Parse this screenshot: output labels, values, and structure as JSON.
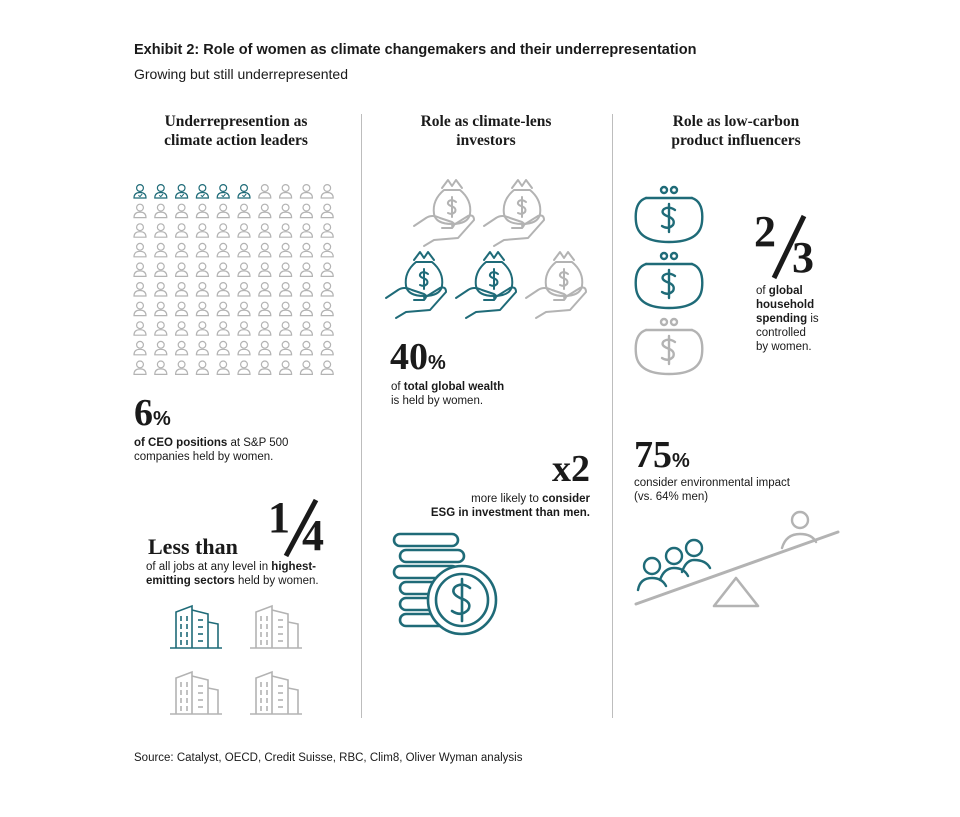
{
  "title": "Exhibit 2: Role of women as climate changemakers and their underrepresentation",
  "subtitle": "Growing but still underrepresented",
  "colors": {
    "teal": "#1f6b78",
    "grey": "#b3b3b3",
    "text": "#1a1a1a"
  },
  "columns": {
    "leaders": {
      "heading_line1": "Underrepresention as",
      "heading_line2": "climate action leaders",
      "icon_grid": {
        "icon": "person-icon",
        "rows": 10,
        "cols": 10,
        "highlighted": 6
      },
      "stat1": {
        "value": "6",
        "unit": "%",
        "text_bold": "of CEO positions",
        "text_rest": " at S&P 500",
        "text_line2": "companies held by women."
      },
      "stat2": {
        "prefix": "Less than",
        "fraction_num": "1",
        "fraction_den": "4",
        "line1_plain": "of all jobs at any level in ",
        "line1_bold": "highest-",
        "line2_bold": "emitting sectors",
        "line2_plain": " held by women."
      },
      "buildings": {
        "icon": "building-icon",
        "count": 4,
        "highlighted": 1
      }
    },
    "investors": {
      "heading_line1": "Role as climate-lens",
      "heading_line2": "investors",
      "money_bags": {
        "icon": "money-bag-hand-icon",
        "count": 5,
        "highlighted": 2
      },
      "stat1": {
        "value": "40",
        "unit": "%",
        "line1_plain": "of ",
        "line1_bold": "total global wealth",
        "line2": "is held by women."
      },
      "stat2": {
        "value": "x2",
        "line1_plain": "more likely to ",
        "line1_bold": "consider",
        "line2": "ESG in investment than men."
      },
      "coins_icon": "coin-stack-icon"
    },
    "influencers": {
      "heading_line1": "Role as low-carbon",
      "heading_line2": "product influencers",
      "purses": {
        "icon": "purse-icon",
        "count": 3,
        "highlighted": 2
      },
      "stat1": {
        "fraction_num": "2",
        "fraction_den": "3",
        "line1_plain": "of ",
        "line1_bold": "global",
        "line2_bold": "household",
        "line3_bold": "spending",
        "line3_plain": " is",
        "line4": "controlled",
        "line5": "by women."
      },
      "stat2": {
        "value": "75",
        "unit": "%",
        "line1": "consider environmental impact",
        "line2": "(vs. 64% men)"
      },
      "seesaw_icon": "seesaw-icon"
    }
  },
  "source": "Source: Catalyst, OECD, Credit Suisse, RBC, Clim8, Oliver Wyman analysis"
}
